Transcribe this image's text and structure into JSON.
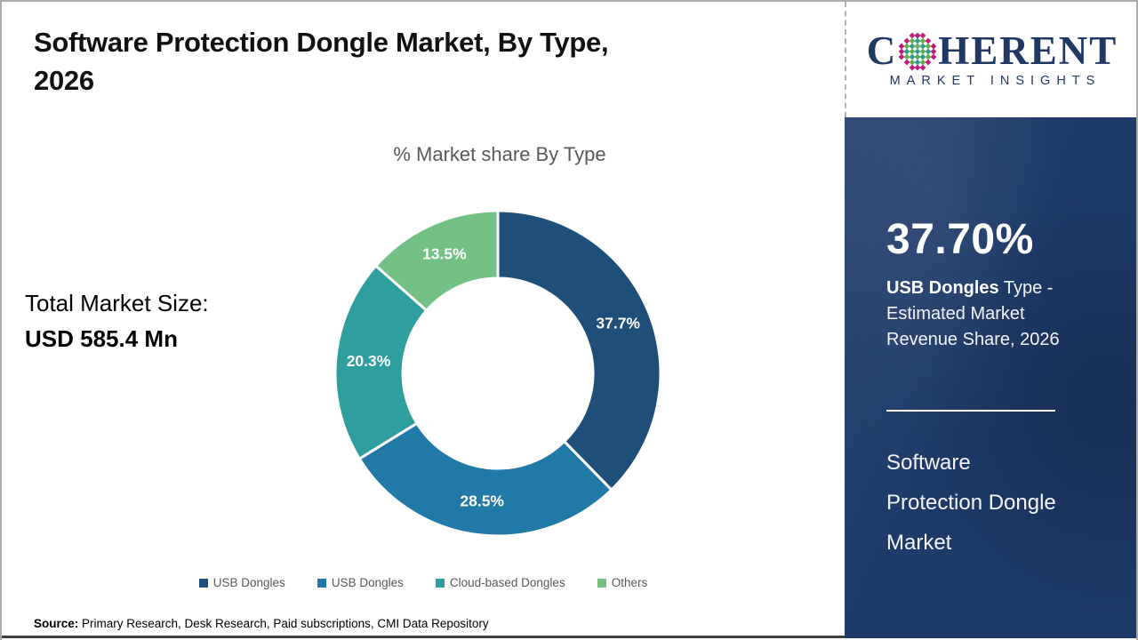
{
  "page": {
    "title": "Software Protection Dongle Market, By Type,\n2026",
    "source_label": "Source:",
    "source_text": " Primary Research, Desk Research, Paid subscriptions, CMI Data Repository"
  },
  "left_stats": {
    "label": "Total Market Size:",
    "value": "USD 585.4 Mn"
  },
  "chart_data": {
    "type": "pie",
    "donut": true,
    "title": "% Market share By Type",
    "start_angle_deg": 0,
    "direction": "clockwise",
    "legend_position": "bottom",
    "data_label_suffix": "%",
    "slices": [
      {
        "label": "USB Dongles",
        "value": 37.7,
        "color": "#1F4E79"
      },
      {
        "label": "USB Dongles",
        "value": 28.5,
        "color": "#2079A6"
      },
      {
        "label": "Cloud-based Dongles",
        "value": 20.3,
        "color": "#2E9E9F"
      },
      {
        "label": "Others",
        "value": 13.5,
        "color": "#72C083"
      }
    ]
  },
  "logo": {
    "brand_prefix": "C",
    "brand_suffix": "HERENT",
    "brand_sub": "MARKET INSIGHTS",
    "navy": "#1F3864",
    "globe_outer_color": "#C2187B",
    "globe_teal_color": "#2A9D8F",
    "globe_green_color": "#63AE45"
  },
  "sidebar": {
    "background": "#1E3A69",
    "stat_value": "37.70%",
    "stat_label_bold": "USB Dongles",
    "stat_label_rest": " Type -\nEstimated Market\nRevenue Share, 2026",
    "panel_title": "Software\nProtection Dongle\nMarket"
  }
}
